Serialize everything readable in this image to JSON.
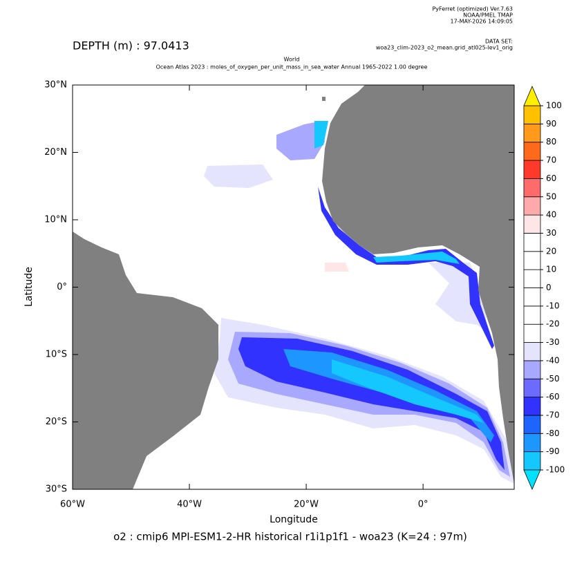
{
  "header": {
    "software": "PyFerret (optimized) Ver.7.63",
    "org": "NOAA/PMEL TMAP",
    "timestamp": "17-MAY-2026 14:09:05",
    "dataset_label": "DATA SET:",
    "dataset": "woa23_clim-2023_o2_mean.grid_atl025-lev1_orig"
  },
  "chart_data": {
    "type": "heatmap",
    "depth_label": "DEPTH (m) : 97.0413",
    "title": "World",
    "subtitle": "Ocean Atlas 2023 : moles_of_oxygen_per_unit_mass_in_sea_water Annual 1965-2022 1.00 degree",
    "x_label": "Longitude",
    "y_label": "Latitude",
    "caption": "o2 : cmip6 MPI-ESM1-2-HR historical r1i1p1f1 - woa23  (K=24 : 97m)",
    "xlim": [
      -60,
      15.6
    ],
    "ylim": [
      -30,
      30
    ],
    "xticks": [
      {
        "value": -60,
        "label": "60°W"
      },
      {
        "value": -40,
        "label": "40°W"
      },
      {
        "value": -20,
        "label": "20°W"
      },
      {
        "value": 0,
        "label": "0°"
      }
    ],
    "yticks": [
      {
        "value": 30,
        "label": "30°N"
      },
      {
        "value": 20,
        "label": "20°N"
      },
      {
        "value": 10,
        "label": "10°N"
      },
      {
        "value": 0,
        "label": "0°"
      },
      {
        "value": -10,
        "label": "10°S"
      },
      {
        "value": -20,
        "label": "20°S"
      },
      {
        "value": -30,
        "label": "30°S"
      }
    ],
    "colorbar": {
      "levels": [
        -100,
        -90,
        -80,
        -70,
        -60,
        -50,
        -40,
        -30,
        -20,
        -10,
        0,
        10,
        20,
        30,
        40,
        50,
        60,
        70,
        80,
        90,
        100
      ],
      "colors": [
        "#14c8ff",
        "#1e96ff",
        "#1e64ff",
        "#3232ff",
        "#6b6bff",
        "#a8a8ff",
        "#e4e4ff",
        "#ffffff",
        "#ffffff",
        "#ffffff",
        "#ffffff",
        "#ffffff",
        "#ffffff",
        "#ffe6e6",
        "#ffaaaa",
        "#ff6b6b",
        "#ff3a2a",
        "#ff6a1a",
        "#ff9a1a",
        "#ffc000"
      ],
      "under_color": "#00e0ff",
      "over_color": "#ffee00"
    }
  }
}
